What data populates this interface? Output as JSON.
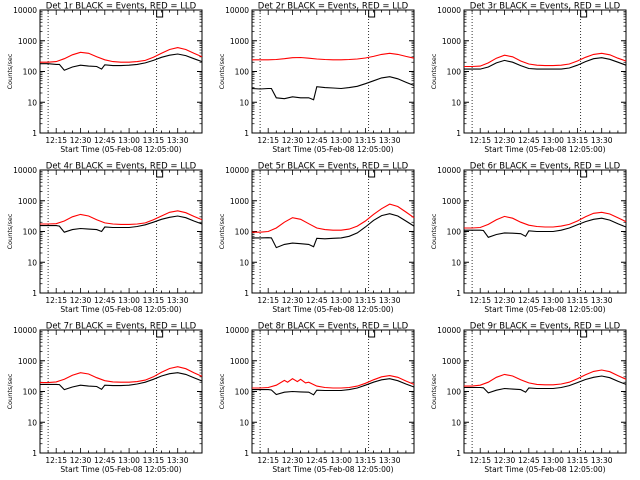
{
  "colors": {
    "events": "#000000",
    "lld": "#ff0000",
    "axis": "#000000",
    "marker": "#000000"
  },
  "common": {
    "xlabel": "Start Time (05-Feb-08 12:05:00)",
    "ylabel": "Counts/sec",
    "x_tick_labels": [
      "12:15",
      "12:30",
      "12:45",
      "13:00",
      "13:15",
      "13:30"
    ],
    "x_tick_values": [
      10,
      25,
      40,
      55,
      70,
      85
    ],
    "y_tick_labels": [
      "1",
      "10",
      "100",
      "1000",
      "10000"
    ],
    "y_tick_values": [
      1,
      10,
      100,
      1000,
      10000
    ],
    "xlim": [
      0,
      100
    ],
    "ylim": [
      1,
      10000
    ],
    "yscale": "log",
    "dotted_vlines": [
      5,
      72
    ],
    "marker_x": 72
  },
  "chart_data": [
    {
      "type": "line",
      "title": "Det 1r BLACK = Events, RED = LLD",
      "series": [
        {
          "name": "LLD",
          "x": [
            0,
            5,
            10,
            15,
            20,
            25,
            30,
            35,
            40,
            45,
            50,
            55,
            60,
            65,
            70,
            75,
            80,
            85,
            90,
            95,
            100
          ],
          "y": [
            200,
            200,
            210,
            260,
            350,
            420,
            390,
            300,
            240,
            210,
            200,
            200,
            210,
            230,
            290,
            390,
            520,
            600,
            520,
            390,
            300
          ]
        },
        {
          "name": "Events",
          "x": [
            0,
            5,
            10,
            12,
            15,
            20,
            25,
            30,
            35,
            38,
            40,
            45,
            50,
            55,
            60,
            65,
            70,
            75,
            80,
            85,
            90,
            95,
            100
          ],
          "y": [
            180,
            180,
            170,
            170,
            110,
            140,
            160,
            150,
            145,
            120,
            165,
            155,
            155,
            160,
            170,
            190,
            230,
            290,
            340,
            370,
            330,
            260,
            210
          ]
        }
      ]
    },
    {
      "type": "line",
      "title": "Det 2r BLACK = Events, RED = LLD",
      "series": [
        {
          "name": "LLD",
          "x": [
            0,
            5,
            10,
            15,
            20,
            25,
            30,
            35,
            40,
            45,
            50,
            55,
            60,
            65,
            70,
            75,
            80,
            85,
            90,
            95,
            100
          ],
          "y": [
            240,
            240,
            240,
            245,
            260,
            280,
            285,
            270,
            255,
            245,
            240,
            240,
            245,
            255,
            275,
            310,
            360,
            390,
            360,
            310,
            270
          ]
        },
        {
          "name": "Events",
          "x": [
            0,
            5,
            10,
            12,
            15,
            20,
            25,
            30,
            35,
            38,
            40,
            45,
            50,
            55,
            60,
            65,
            70,
            75,
            80,
            85,
            90,
            95,
            100
          ],
          "y": [
            28,
            27,
            28,
            28,
            14,
            13,
            15,
            14,
            14,
            12,
            32,
            30,
            29,
            28,
            30,
            33,
            40,
            50,
            62,
            68,
            58,
            45,
            35
          ]
        }
      ]
    },
    {
      "type": "line",
      "title": "Det 3r BLACK = Events, RED = LLD",
      "series": [
        {
          "name": "LLD",
          "x": [
            0,
            5,
            10,
            15,
            20,
            25,
            30,
            35,
            40,
            45,
            50,
            55,
            60,
            65,
            70,
            75,
            80,
            85,
            90,
            95,
            100
          ],
          "y": [
            145,
            145,
            150,
            190,
            270,
            340,
            300,
            220,
            175,
            160,
            155,
            155,
            160,
            175,
            220,
            290,
            360,
            390,
            350,
            270,
            220
          ]
        },
        {
          "name": "Events",
          "x": [
            0,
            5,
            10,
            15,
            20,
            25,
            30,
            35,
            40,
            45,
            50,
            55,
            60,
            65,
            70,
            75,
            80,
            85,
            90,
            95,
            100
          ],
          "y": [
            120,
            120,
            120,
            140,
            190,
            230,
            200,
            155,
            125,
            120,
            120,
            120,
            120,
            130,
            160,
            210,
            260,
            280,
            250,
            200,
            160
          ]
        }
      ]
    },
    {
      "type": "line",
      "title": "Det 4r BLACK = Events, RED = LLD",
      "series": [
        {
          "name": "LLD",
          "x": [
            0,
            5,
            10,
            15,
            20,
            25,
            30,
            35,
            40,
            45,
            50,
            55,
            60,
            65,
            70,
            75,
            80,
            85,
            90,
            95,
            100
          ],
          "y": [
            175,
            175,
            180,
            220,
            300,
            360,
            320,
            240,
            190,
            175,
            170,
            170,
            175,
            190,
            240,
            320,
            420,
            470,
            410,
            310,
            240
          ]
        },
        {
          "name": "Events",
          "x": [
            0,
            5,
            10,
            12,
            15,
            20,
            25,
            30,
            35,
            38,
            40,
            45,
            50,
            55,
            60,
            65,
            70,
            75,
            80,
            85,
            90,
            95,
            100
          ],
          "y": [
            155,
            155,
            155,
            150,
            95,
            115,
            125,
            120,
            115,
            100,
            140,
            135,
            135,
            135,
            145,
            165,
            200,
            250,
            290,
            320,
            280,
            220,
            175
          ]
        }
      ]
    },
    {
      "type": "line",
      "title": "Det 5r BLACK = Events, RED = LLD",
      "series": [
        {
          "name": "LLD",
          "x": [
            0,
            5,
            10,
            15,
            20,
            25,
            30,
            35,
            40,
            45,
            50,
            55,
            60,
            65,
            70,
            75,
            80,
            85,
            90,
            95,
            100
          ],
          "y": [
            95,
            95,
            100,
            130,
            200,
            280,
            250,
            180,
            130,
            115,
            110,
            110,
            120,
            150,
            220,
            360,
            550,
            780,
            650,
            430,
            280
          ]
        },
        {
          "name": "Events",
          "x": [
            0,
            5,
            10,
            12,
            15,
            20,
            25,
            30,
            35,
            38,
            40,
            45,
            50,
            55,
            60,
            65,
            70,
            75,
            80,
            85,
            90,
            95,
            100
          ],
          "y": [
            62,
            62,
            63,
            62,
            30,
            38,
            42,
            40,
            38,
            32,
            60,
            58,
            60,
            62,
            70,
            90,
            140,
            230,
            330,
            380,
            320,
            220,
            150
          ]
        }
      ]
    },
    {
      "type": "line",
      "title": "Det 6r BLACK = Events, RED = LLD",
      "series": [
        {
          "name": "LLD",
          "x": [
            0,
            5,
            10,
            15,
            20,
            25,
            30,
            35,
            40,
            45,
            50,
            55,
            60,
            65,
            70,
            75,
            80,
            85,
            90,
            95,
            100
          ],
          "y": [
            130,
            130,
            135,
            170,
            240,
            310,
            270,
            200,
            160,
            145,
            140,
            140,
            150,
            170,
            220,
            300,
            390,
            420,
            370,
            280,
            210
          ]
        },
        {
          "name": "Events",
          "x": [
            0,
            5,
            10,
            12,
            15,
            20,
            25,
            30,
            35,
            38,
            40,
            45,
            50,
            55,
            60,
            65,
            70,
            75,
            80,
            85,
            90,
            95,
            100
          ],
          "y": [
            110,
            110,
            110,
            108,
            65,
            80,
            90,
            88,
            85,
            70,
            105,
            100,
            100,
            100,
            110,
            130,
            165,
            210,
            250,
            270,
            235,
            180,
            140
          ]
        }
      ]
    },
    {
      "type": "line",
      "title": "Det 7r BLACK = Events, RED = LLD",
      "series": [
        {
          "name": "LLD",
          "x": [
            0,
            5,
            10,
            15,
            20,
            25,
            30,
            35,
            40,
            45,
            50,
            55,
            60,
            65,
            70,
            75,
            80,
            85,
            90,
            95,
            100
          ],
          "y": [
            195,
            195,
            205,
            250,
            340,
            410,
            370,
            280,
            225,
            205,
            200,
            200,
            210,
            235,
            300,
            420,
            560,
            640,
            550,
            410,
            310
          ]
        },
        {
          "name": "Events",
          "x": [
            0,
            5,
            10,
            12,
            15,
            20,
            25,
            30,
            35,
            38,
            40,
            45,
            50,
            55,
            60,
            65,
            70,
            75,
            80,
            85,
            90,
            95,
            100
          ],
          "y": [
            170,
            170,
            170,
            168,
            115,
            140,
            160,
            150,
            145,
            118,
            160,
            155,
            155,
            160,
            175,
            200,
            250,
            320,
            380,
            410,
            360,
            280,
            220
          ]
        }
      ]
    },
    {
      "type": "line",
      "title": "Det 8r BLACK = Events, RED = LLD",
      "series": [
        {
          "name": "LLD",
          "x": [
            0,
            5,
            10,
            15,
            20,
            22,
            25,
            28,
            30,
            33,
            35,
            40,
            45,
            50,
            55,
            60,
            65,
            70,
            75,
            80,
            85,
            90,
            95,
            100
          ],
          "y": [
            130,
            130,
            135,
            160,
            230,
            200,
            260,
            210,
            250,
            190,
            200,
            150,
            135,
            130,
            130,
            135,
            150,
            185,
            240,
            300,
            330,
            290,
            220,
            170
          ]
        },
        {
          "name": "Events",
          "x": [
            0,
            5,
            10,
            12,
            15,
            20,
            25,
            30,
            35,
            38,
            40,
            45,
            50,
            55,
            60,
            65,
            70,
            75,
            80,
            85,
            90,
            95,
            100
          ],
          "y": [
            115,
            115,
            115,
            112,
            80,
            95,
            100,
            97,
            95,
            78,
            110,
            108,
            108,
            108,
            115,
            130,
            160,
            200,
            240,
            260,
            225,
            175,
            140
          ]
        }
      ]
    },
    {
      "type": "line",
      "title": "Det 9r BLACK = Events, RED = LLD",
      "series": [
        {
          "name": "LLD",
          "x": [
            0,
            5,
            10,
            15,
            20,
            25,
            30,
            35,
            40,
            45,
            50,
            55,
            60,
            65,
            70,
            75,
            80,
            85,
            90,
            95,
            100
          ],
          "y": [
            150,
            150,
            160,
            200,
            290,
            360,
            320,
            240,
            190,
            170,
            165,
            165,
            175,
            200,
            260,
            350,
            450,
            500,
            440,
            330,
            250
          ]
        },
        {
          "name": "Events",
          "x": [
            0,
            5,
            10,
            12,
            15,
            20,
            25,
            30,
            35,
            38,
            40,
            45,
            50,
            55,
            60,
            65,
            70,
            75,
            80,
            85,
            90,
            95,
            100
          ],
          "y": [
            135,
            135,
            135,
            132,
            90,
            110,
            125,
            120,
            115,
            95,
            130,
            125,
            125,
            125,
            135,
            155,
            195,
            245,
            290,
            320,
            280,
            215,
            170
          ]
        }
      ]
    }
  ]
}
